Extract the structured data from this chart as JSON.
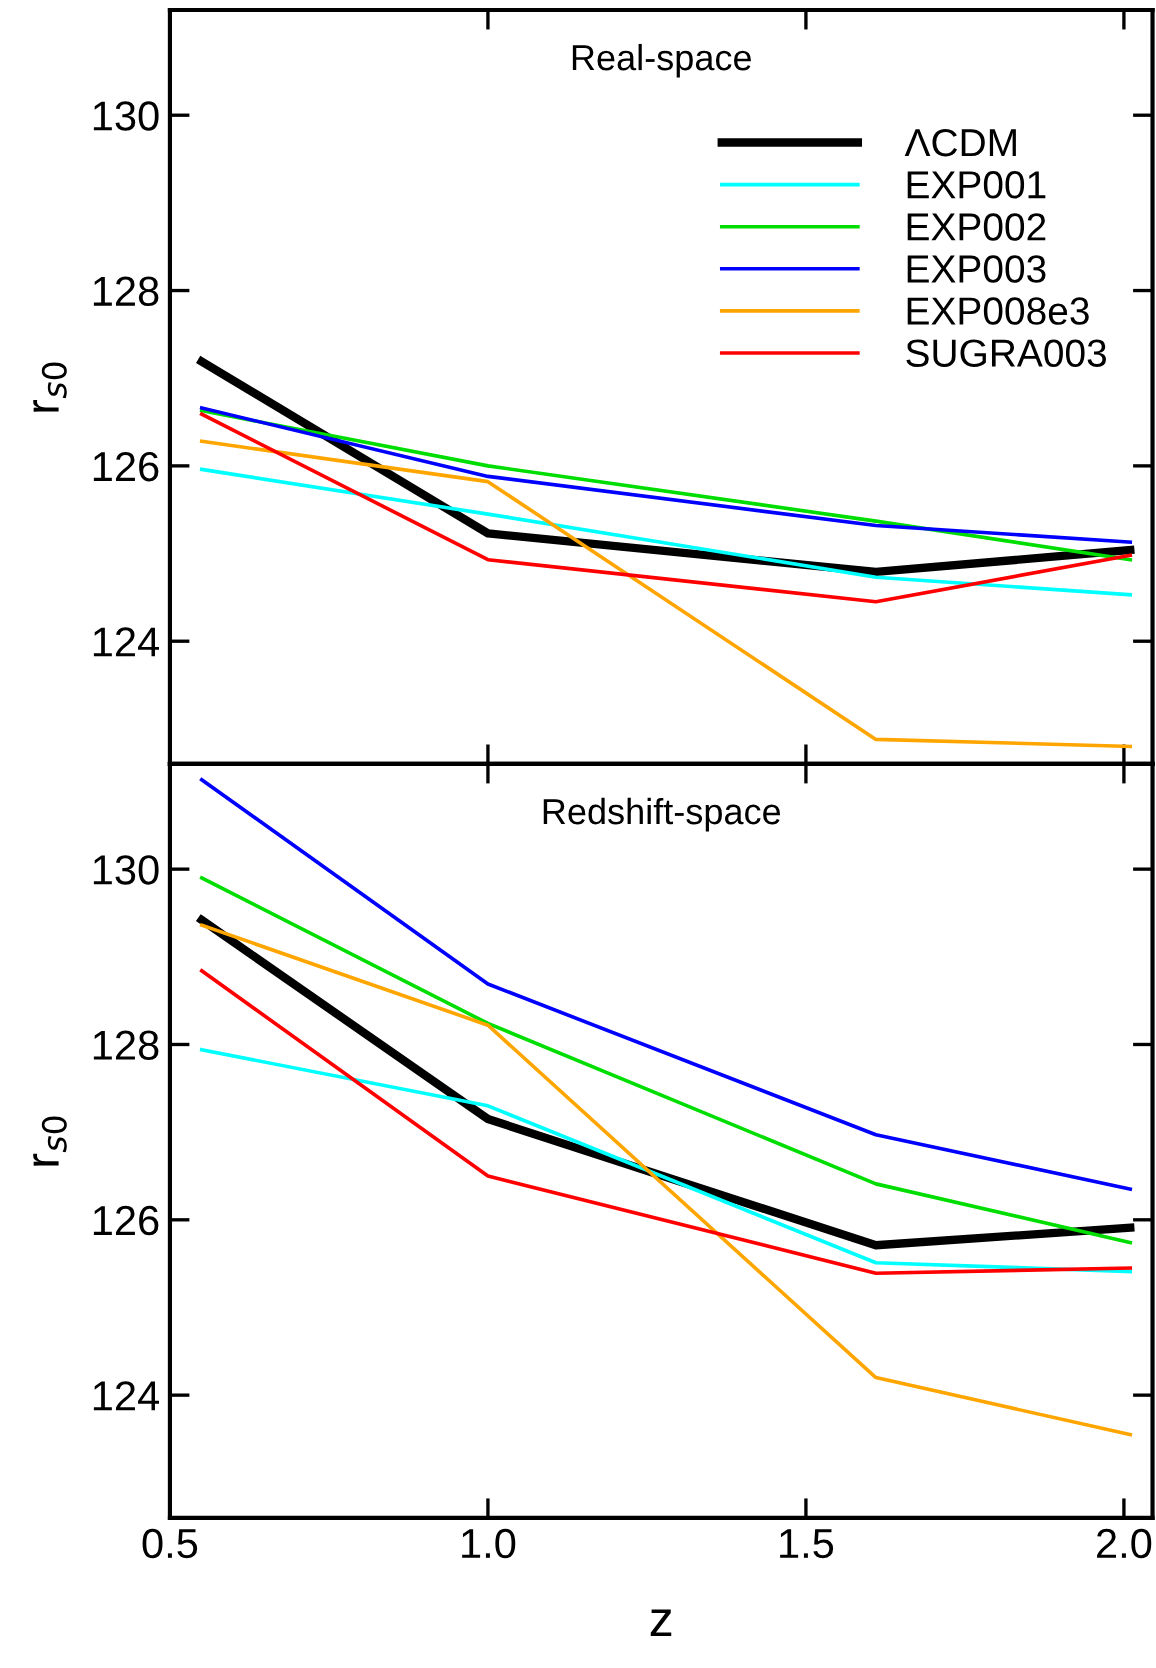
{
  "chart_data": [
    {
      "type": "line",
      "title": "Real-space",
      "ylabel": "r$_{s0}$",
      "x": [
        0.55,
        1.0,
        1.61,
        2.01
      ],
      "xlim": [
        0.5,
        2.045
      ],
      "xticks": [
        {
          "value": 0.5,
          "label": null
        },
        {
          "value": 1.0,
          "label": null
        },
        {
          "value": 1.5,
          "label": null
        },
        {
          "value": 2.0,
          "label": null
        }
      ],
      "ylim": [
        122.6,
        131.2
      ],
      "yticks": [
        124,
        126,
        128,
        130
      ],
      "tick_labels": "y",
      "legend": "top right",
      "grid": false,
      "series": [
        {
          "name": "ΛCDM",
          "color": "#000000",
          "values": [
            127.19,
            125.23,
            124.79,
            125.04
          ]
        },
        {
          "name": "EXP001",
          "color": "#00ffff",
          "values": [
            125.96,
            125.45,
            124.73,
            124.53
          ]
        },
        {
          "name": "EXP002",
          "color": "#00dd00",
          "values": [
            126.63,
            126.0,
            125.37,
            124.93
          ]
        },
        {
          "name": "EXP003",
          "color": "#0000ff",
          "values": [
            126.66,
            125.88,
            125.32,
            125.13
          ]
        },
        {
          "name": "EXP008e3",
          "color": "#ffa500",
          "values": [
            126.28,
            125.82,
            122.88,
            122.8
          ]
        },
        {
          "name": "SUGRA003",
          "color": "#ff0000",
          "values": [
            126.59,
            124.93,
            124.45,
            124.98
          ]
        }
      ]
    },
    {
      "type": "line",
      "title": "Redshift-space",
      "ylabel": "r$_{s0}$",
      "xlabel": "z",
      "x": [
        0.55,
        1.0,
        1.61,
        2.01
      ],
      "xlim": [
        0.5,
        2.045
      ],
      "xticks": [
        {
          "value": 0.5,
          "label": "0.5"
        },
        {
          "value": 1.0,
          "label": "1.0"
        },
        {
          "value": 1.5,
          "label": "1.5"
        },
        {
          "value": 2.0,
          "label": "2.0"
        }
      ],
      "ylim": [
        122.6,
        131.2
      ],
      "yticks": [
        124,
        126,
        128,
        130
      ],
      "grid": false,
      "series": [
        {
          "color": "#000000",
          "values": [
            129.42,
            127.15,
            125.71,
            125.91
          ]
        },
        {
          "color": "#00ffff",
          "values": [
            127.94,
            127.3,
            125.51,
            125.41
          ]
        },
        {
          "color": "#00dd00",
          "values": [
            129.9,
            128.24,
            126.41,
            125.74
          ]
        },
        {
          "color": "#0000ff",
          "values": [
            131.02,
            128.69,
            126.97,
            126.35
          ]
        },
        {
          "color": "#ffa500",
          "values": [
            129.36,
            128.22,
            124.2,
            123.55
          ]
        },
        {
          "color": "#ff0000",
          "values": [
            128.84,
            126.5,
            125.39,
            125.45
          ]
        }
      ]
    }
  ]
}
